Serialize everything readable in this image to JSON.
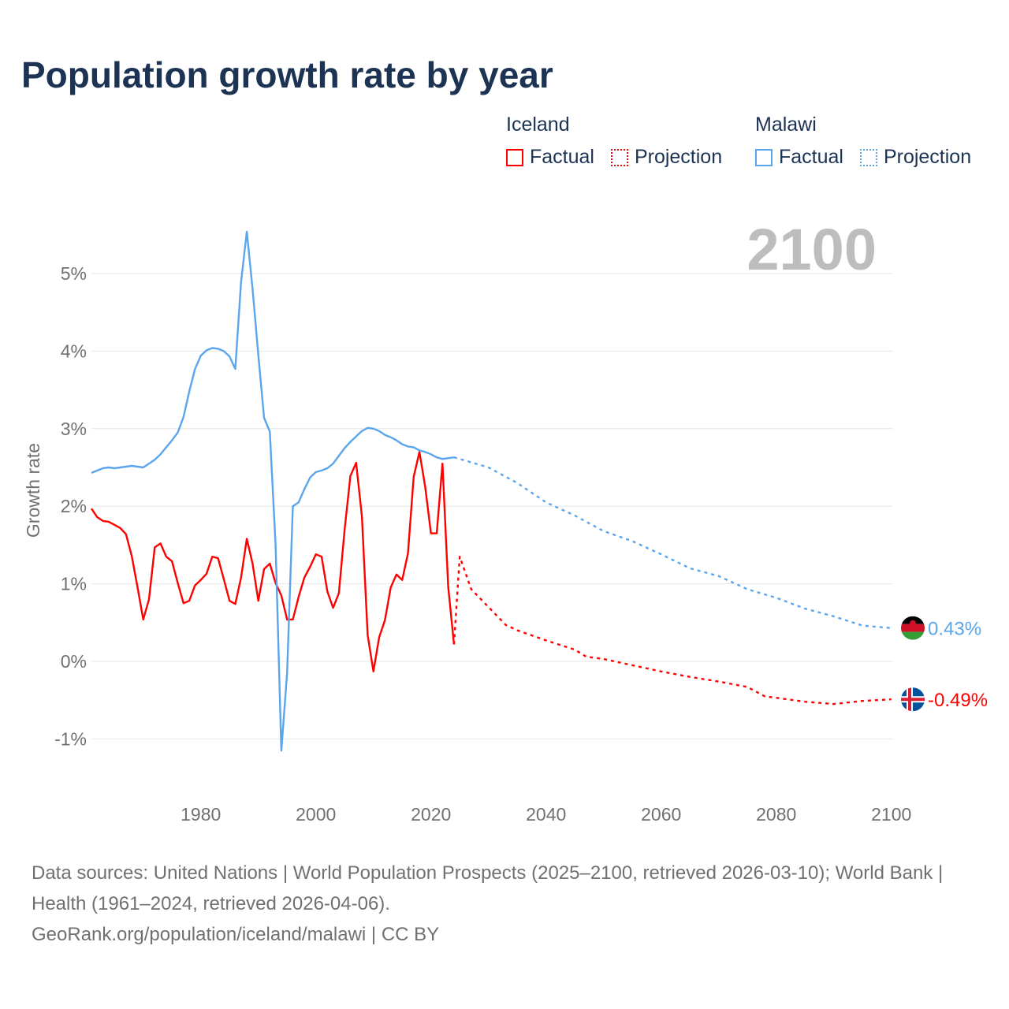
{
  "title": "Population growth rate by year",
  "legend": [
    {
      "group": "Iceland",
      "factual_label": "Factual",
      "projection_label": "Projection",
      "color": "#ff0000"
    },
    {
      "group": "Malawi",
      "factual_label": "Factual",
      "projection_label": "Projection",
      "color": "#5aa5ec"
    }
  ],
  "footer": {
    "sources": "Data sources: United Nations | World Population Prospects (2025–2100, retrieved 2026-03-10); World Bank | Health (1961–2024, retrieved 2026-04-06).",
    "credit": "GeoRank.org/population/iceland/malawi | CC BY"
  },
  "chart_data": {
    "type": "line",
    "title": "Population growth rate by year",
    "year_watermark": "2100",
    "xlabel": "",
    "ylabel": "Growth rate",
    "xlim": [
      1961,
      2100
    ],
    "ylim": [
      -1.5,
      5.6
    ],
    "x_ticks": [
      1980,
      2000,
      2020,
      2040,
      2060,
      2080,
      2100
    ],
    "x_tick_labels": [
      "1980",
      "2000",
      "2020",
      "2040",
      "2060",
      "2080",
      "2100"
    ],
    "y_ticks": [
      -1,
      0,
      1,
      2,
      3,
      4,
      5
    ],
    "y_tick_labels": [
      "-1%",
      "0%",
      "1%",
      "2%",
      "3%",
      "4%",
      "5%"
    ],
    "grid": true,
    "legend_position": "top-right",
    "series": [
      {
        "name": "Iceland Factual",
        "country": "Iceland",
        "color": "#ff0000",
        "style": "solid",
        "x_start": 1961,
        "values": [
          1.97,
          1.86,
          1.81,
          1.8,
          1.76,
          1.72,
          1.64,
          1.36,
          0.96,
          0.54,
          0.8,
          1.47,
          1.52,
          1.35,
          1.29,
          1.01,
          0.75,
          0.78,
          0.98,
          1.05,
          1.13,
          1.35,
          1.33,
          1.06,
          0.78,
          0.74,
          1.08,
          1.58,
          1.26,
          0.78,
          1.19,
          1.26,
          1.01,
          0.85,
          0.54,
          0.54,
          0.83,
          1.08,
          1.22,
          1.38,
          1.35,
          0.9,
          0.69,
          0.88,
          1.7,
          2.39,
          2.56,
          1.87,
          0.34,
          -0.13,
          0.31,
          0.53,
          0.95,
          1.12,
          1.05,
          1.39,
          2.38,
          2.7,
          2.25,
          1.65,
          1.65,
          2.55,
          0.96,
          0.22
        ]
      },
      {
        "name": "Iceland Projection",
        "country": "Iceland",
        "color": "#ff0000",
        "style": "dotted",
        "points": [
          [
            2024,
            0.22
          ],
          [
            2025,
            1.35
          ],
          [
            2027,
            0.93
          ],
          [
            2030,
            0.7
          ],
          [
            2033,
            0.47
          ],
          [
            2035,
            0.4
          ],
          [
            2040,
            0.27
          ],
          [
            2045,
            0.15
          ],
          [
            2047,
            0.06
          ],
          [
            2050,
            0.03
          ],
          [
            2055,
            -0.05
          ],
          [
            2060,
            -0.13
          ],
          [
            2065,
            -0.2
          ],
          [
            2070,
            -0.26
          ],
          [
            2075,
            -0.33
          ],
          [
            2078,
            -0.45
          ],
          [
            2080,
            -0.47
          ],
          [
            2085,
            -0.52
          ],
          [
            2090,
            -0.55
          ],
          [
            2095,
            -0.51
          ],
          [
            2100,
            -0.49
          ]
        ]
      },
      {
        "name": "Malawi Factual",
        "country": "Malawi",
        "color": "#5aa5ec",
        "style": "solid",
        "x_start": 1961,
        "values": [
          2.43,
          2.46,
          2.49,
          2.5,
          2.49,
          2.5,
          2.51,
          2.52,
          2.51,
          2.5,
          2.55,
          2.6,
          2.67,
          2.76,
          2.85,
          2.95,
          3.15,
          3.48,
          3.77,
          3.94,
          4.01,
          4.04,
          4.03,
          4.0,
          3.93,
          3.77,
          4.89,
          5.54,
          4.8,
          3.95,
          3.14,
          2.96,
          1.5,
          -1.15,
          -0.15,
          2.0,
          2.05,
          2.22,
          2.37,
          2.44,
          2.46,
          2.49,
          2.55,
          2.65,
          2.75,
          2.83,
          2.9,
          2.97,
          3.01,
          3.0,
          2.97,
          2.92,
          2.89,
          2.85,
          2.8,
          2.77,
          2.76,
          2.72,
          2.7,
          2.67,
          2.63,
          2.61,
          2.62,
          2.63
        ]
      },
      {
        "name": "Malawi Projection",
        "country": "Malawi",
        "color": "#5aa5ec",
        "style": "dotted",
        "points": [
          [
            2024,
            2.63
          ],
          [
            2025,
            2.61
          ],
          [
            2030,
            2.5
          ],
          [
            2035,
            2.3
          ],
          [
            2040,
            2.05
          ],
          [
            2045,
            1.88
          ],
          [
            2050,
            1.68
          ],
          [
            2055,
            1.55
          ],
          [
            2060,
            1.38
          ],
          [
            2065,
            1.2
          ],
          [
            2070,
            1.1
          ],
          [
            2075,
            0.93
          ],
          [
            2080,
            0.82
          ],
          [
            2085,
            0.68
          ],
          [
            2090,
            0.58
          ],
          [
            2095,
            0.46
          ],
          [
            2100,
            0.43
          ]
        ]
      }
    ],
    "end_labels": [
      {
        "country": "Malawi",
        "value": 0.43,
        "label": "0.43%",
        "color": "#5aa5ec"
      },
      {
        "country": "Iceland",
        "value": -0.49,
        "label": "-0.49%",
        "color": "#ff0000"
      }
    ]
  }
}
